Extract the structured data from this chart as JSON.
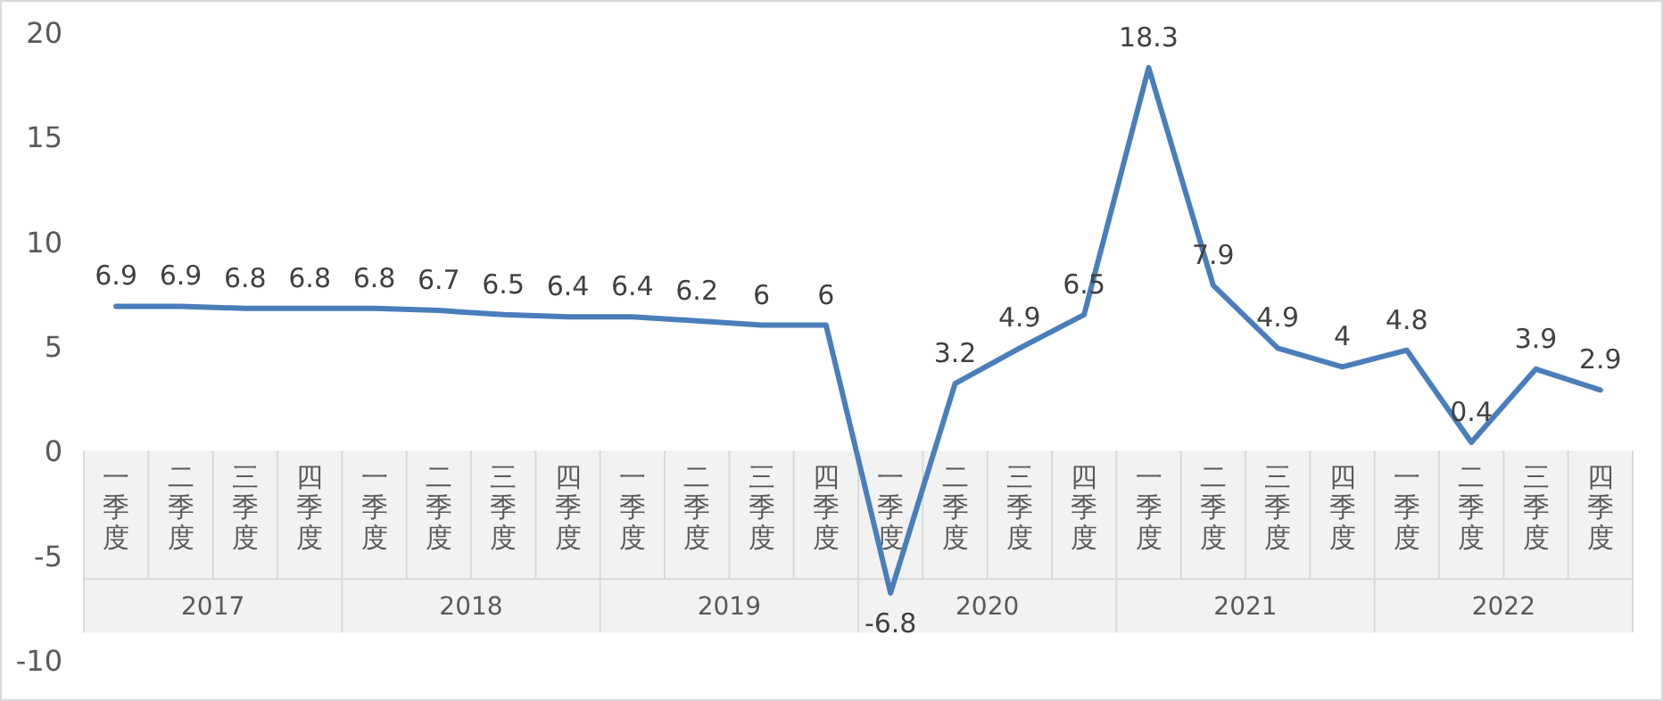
{
  "chart_data": {
    "type": "line",
    "categories": [
      "一季度",
      "二季度",
      "三季度",
      "四季度",
      "一季度",
      "二季度",
      "三季度",
      "四季度",
      "一季度",
      "二季度",
      "三季度",
      "四季度",
      "一季度",
      "二季度",
      "三季度",
      "四季度",
      "一季度",
      "二季度",
      "三季度",
      "四季度",
      "一季度",
      "二季度",
      "三季度",
      "四季度"
    ],
    "values": [
      6.9,
      6.9,
      6.8,
      6.8,
      6.8,
      6.7,
      6.5,
      6.4,
      6.4,
      6.2,
      6,
      6,
      -6.8,
      3.2,
      4.9,
      6.5,
      18.3,
      7.9,
      4.9,
      4,
      4.8,
      0.4,
      3.9,
      2.9
    ],
    "color": "#4a7ebb",
    "ylim": [
      -10,
      20
    ],
    "yticks": [
      -10,
      -5,
      0,
      5,
      10,
      15,
      20
    ],
    "data_labels": true,
    "annotations": [
      "2017",
      "2018",
      "2019",
      "2020",
      "2021",
      "2022"
    ]
  }
}
